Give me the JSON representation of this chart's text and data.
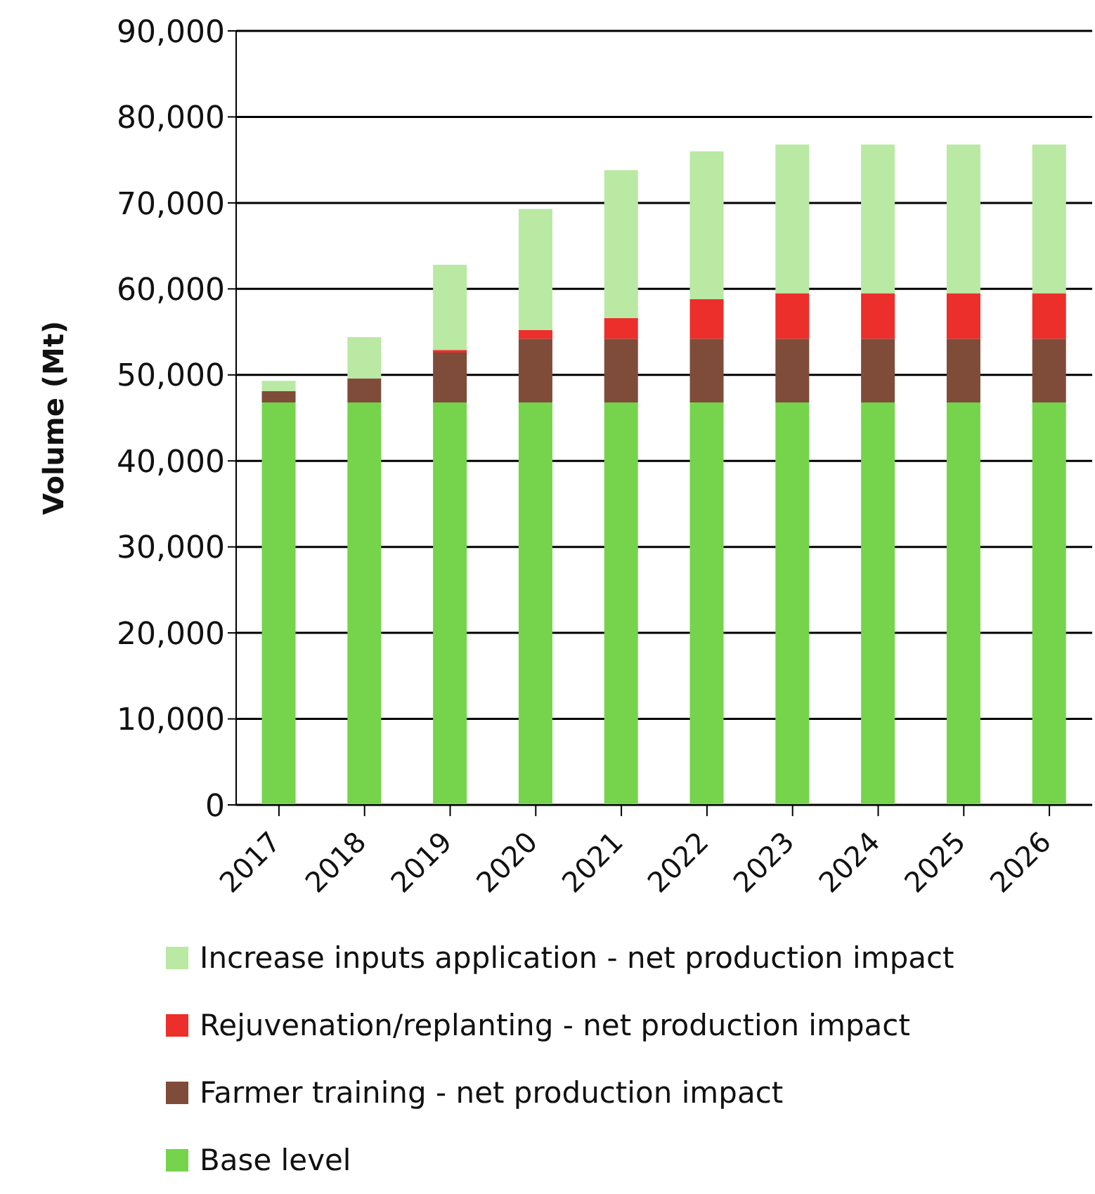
{
  "chart_data": {
    "type": "bar",
    "ylabel": "Volume (Mt)",
    "categories": [
      "2017",
      "2018",
      "2019",
      "2020",
      "2021",
      "2022",
      "2023",
      "2024",
      "2025",
      "2026"
    ],
    "series": [
      {
        "name": "Base level",
        "color": "#75d44b",
        "values": [
          46800,
          46800,
          46800,
          46800,
          46800,
          46800,
          46800,
          46800,
          46800,
          46800
        ]
      },
      {
        "name": "Farmer training - net production impact",
        "color": "#7f4c3a",
        "values": [
          1300,
          2800,
          5800,
          7400,
          7400,
          7400,
          7400,
          7400,
          7400,
          7400
        ]
      },
      {
        "name": "Rejuvenation/replanting - net production impact",
        "color": "#ec2f2b",
        "values": [
          0,
          0,
          300,
          1000,
          2400,
          4600,
          5300,
          5300,
          5300,
          5300
        ]
      },
      {
        "name": "Increase inputs application - net production impact",
        "color": "#b9e9a3",
        "values": [
          1200,
          4800,
          9900,
          14100,
          17200,
          17200,
          17300,
          17300,
          17300,
          17300
        ]
      }
    ],
    "stacked": true,
    "ylim": [
      0,
      90000
    ],
    "yticks": [
      0,
      {
        "value": 10000,
        "label": "10,000"
      },
      {
        "value": 20000,
        "label": "20,000"
      },
      {
        "value": 30000,
        "label": "30,000"
      },
      {
        "value": 40000,
        "label": "40,000"
      },
      {
        "value": 50000,
        "label": "50,000"
      },
      {
        "value": 60000,
        "label": "60,000"
      },
      {
        "value": 70000,
        "label": "70,000"
      },
      {
        "value": 80000,
        "label": "80,000"
      },
      {
        "value": 90000,
        "label": "90,000"
      }
    ],
    "grid": "y",
    "legend": "bottom"
  }
}
